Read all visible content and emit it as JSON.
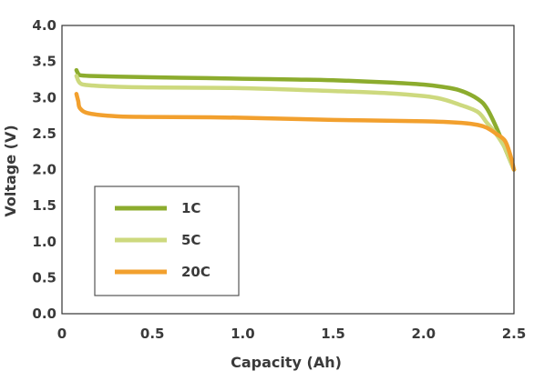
{
  "chart_data": {
    "type": "line",
    "title": "",
    "xlabel": "Capacity (Ah)",
    "ylabel": "Voltage (V)",
    "xlim": [
      0,
      2.5
    ],
    "ylim": [
      0,
      4.0
    ],
    "xticks": [
      "0",
      "0.5",
      "1.0",
      "1.5",
      "2.0",
      "2.5"
    ],
    "yticks": [
      "0.0",
      "0.5",
      "1.0",
      "1.5",
      "2.0",
      "2.5",
      "3.0",
      "3.5",
      "4.0"
    ],
    "grid": false,
    "legend_position": "bottom-left",
    "series": [
      {
        "name": "1C",
        "color": "#8cac2e",
        "x": [
          0.08,
          0.09,
          0.1,
          0.15,
          0.3,
          0.5,
          0.8,
          1.0,
          1.3,
          1.5,
          1.8,
          2.0,
          2.1,
          2.2,
          2.3,
          2.35,
          2.4,
          2.45,
          2.5
        ],
        "y": [
          3.38,
          3.33,
          3.31,
          3.3,
          3.29,
          3.28,
          3.27,
          3.26,
          3.25,
          3.24,
          3.21,
          3.18,
          3.15,
          3.1,
          2.98,
          2.85,
          2.6,
          2.3,
          2.0
        ]
      },
      {
        "name": "5C",
        "color": "#cdd97e",
        "x": [
          0.08,
          0.1,
          0.15,
          0.3,
          0.5,
          1.0,
          1.5,
          1.8,
          2.0,
          2.1,
          2.2,
          2.3,
          2.35,
          2.4,
          2.45,
          2.5
        ],
        "y": [
          3.3,
          3.2,
          3.17,
          3.15,
          3.14,
          3.13,
          3.09,
          3.06,
          3.02,
          2.98,
          2.9,
          2.8,
          2.65,
          2.5,
          2.3,
          2.0
        ]
      },
      {
        "name": "20C",
        "color": "#f2a02e",
        "x": [
          0.08,
          0.09,
          0.1,
          0.15,
          0.3,
          0.5,
          1.0,
          1.5,
          2.0,
          2.2,
          2.3,
          2.35,
          2.4,
          2.45,
          2.48,
          2.5
        ],
        "y": [
          3.05,
          2.95,
          2.85,
          2.78,
          2.74,
          2.73,
          2.72,
          2.69,
          2.67,
          2.65,
          2.62,
          2.58,
          2.5,
          2.4,
          2.2,
          2.0
        ]
      }
    ]
  }
}
